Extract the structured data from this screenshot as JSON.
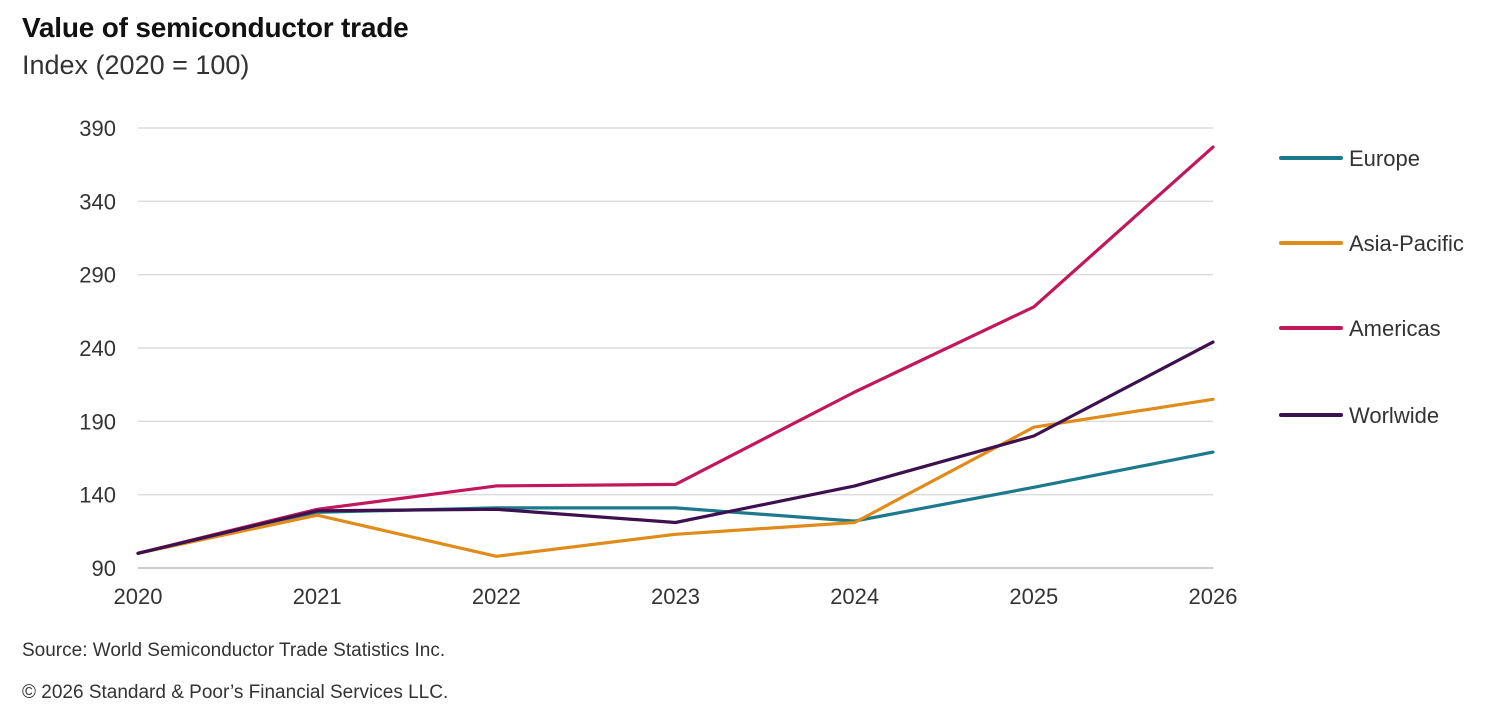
{
  "header": {
    "title": "Value of semiconductor trade",
    "subtitle": "Index (2020 = 100)"
  },
  "footer": {
    "source": "Source: World Semiconductor Trade Statistics Inc.",
    "copyright": "© 2026 Standard & Poor’s Financial Services LLC."
  },
  "chart_data": {
    "type": "line",
    "title": "Value of semiconductor trade",
    "subtitle": "Index (2020 = 100)",
    "x": [
      "2020",
      "2021",
      "2022",
      "2023",
      "2024",
      "2025",
      "2026"
    ],
    "y_ticks": [
      90,
      140,
      190,
      240,
      290,
      340,
      390
    ],
    "ylim": [
      90,
      390
    ],
    "grid": true,
    "legend_position": "right",
    "series": [
      {
        "name": "Europe",
        "color": "#1c7a8c",
        "values": [
          100,
          128,
          131,
          131,
          122,
          145,
          169
        ]
      },
      {
        "name": "Asia-Pacific",
        "color": "#e08c1a",
        "values": [
          100,
          126,
          98,
          113,
          121,
          186,
          205
        ]
      },
      {
        "name": "Americas",
        "color": "#c2185b",
        "values": [
          100,
          130,
          146,
          147,
          210,
          268,
          377
        ]
      },
      {
        "name": "Worlwide",
        "color": "#3d1150",
        "values": [
          100,
          129,
          130,
          121,
          146,
          180,
          244
        ]
      }
    ]
  }
}
